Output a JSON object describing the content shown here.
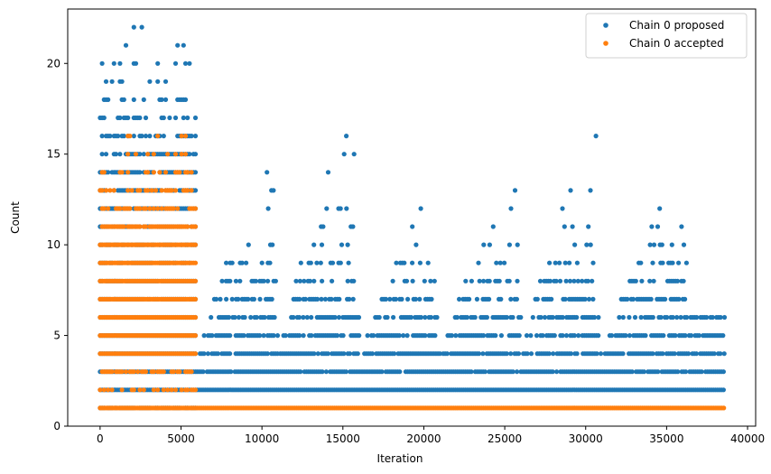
{
  "chart_data": {
    "type": "scatter",
    "xlabel": "Iteration",
    "ylabel": "Count",
    "xlim": [
      -2000,
      40500
    ],
    "ylim": [
      0,
      23
    ],
    "xticks": [
      0,
      5000,
      10000,
      15000,
      20000,
      25000,
      30000,
      35000,
      40000
    ],
    "yticks": [
      0,
      5,
      10,
      15,
      20
    ],
    "grid": false,
    "legend_position": "top-right",
    "colors": {
      "proposed": "#1f77b4",
      "accepted": "#ff7f0e"
    },
    "series": [
      {
        "name": "Chain 0 proposed",
        "color": "#1f77b4",
        "bands": [
          {
            "y": 1,
            "x_from": 0,
            "x_to": 6000,
            "density": 0.8
          },
          {
            "y": 2,
            "x_from": 0,
            "x_to": 38600,
            "density": 1.0
          },
          {
            "y": 3,
            "x_from": 0,
            "x_to": 38600,
            "density": 0.95
          },
          {
            "y": 4,
            "x_from": 0,
            "x_to": 38600,
            "density": 0.85
          },
          {
            "y": 5,
            "x_from": 0,
            "x_to": 38600,
            "density": 0.75
          },
          {
            "y": 6,
            "x_from": 0,
            "x_to": 38600,
            "density": 0.6
          },
          {
            "y": 7,
            "x_from": 0,
            "x_to": 38600,
            "density": 0.55
          },
          {
            "y": 8,
            "x_from": 0,
            "x_to": 38600,
            "density": 0.45
          },
          {
            "y": 9,
            "x_from": 0,
            "x_to": 38600,
            "density": 0.35
          },
          {
            "y": 10,
            "x_from": 0,
            "x_to": 38600,
            "density": 0.3
          },
          {
            "y": 11,
            "x_from": 0,
            "x_to": 38600,
            "density": 0.25
          },
          {
            "y": 12,
            "x_from": 0,
            "x_to": 6000,
            "density": 0.95
          },
          {
            "y": 13,
            "x_from": 0,
            "x_to": 6000,
            "density": 0.9
          },
          {
            "y": 14,
            "x_from": 0,
            "x_to": 6000,
            "density": 0.85
          },
          {
            "y": 15,
            "x_from": 0,
            "x_to": 6000,
            "density": 0.75
          },
          {
            "y": 16,
            "x_from": 0,
            "x_to": 6000,
            "density": 0.55
          },
          {
            "y": 17,
            "x_from": 0,
            "x_to": 6000,
            "density": 0.35
          },
          {
            "y": 18,
            "x_from": 0,
            "x_to": 6000,
            "density": 0.25
          },
          {
            "y": 19,
            "x_from": 0,
            "x_to": 6000,
            "density": 0.15
          },
          {
            "y": 20,
            "x_from": 0,
            "x_to": 6000,
            "density": 0.12
          },
          {
            "y": 21,
            "x_from": 0,
            "x_to": 6000,
            "density": 0.08
          },
          {
            "y": 22,
            "x_from": 0,
            "x_to": 6000,
            "density": 0.05
          }
        ],
        "cycles": [
          {
            "start": 6000,
            "peak_x": 10800,
            "end": 11000,
            "max_y": 15
          },
          {
            "start": 11000,
            "peak_x": 15600,
            "end": 16000,
            "max_y": 17
          },
          {
            "start": 16000,
            "peak_x": 20600,
            "end": 21000,
            "max_y": 13
          },
          {
            "start": 21000,
            "peak_x": 25800,
            "end": 26000,
            "max_y": 14
          },
          {
            "start": 26000,
            "peak_x": 30500,
            "end": 31000,
            "max_y": 16
          },
          {
            "start": 31000,
            "peak_x": 35300,
            "end": 38600,
            "max_y": 13
          }
        ]
      },
      {
        "name": "Chain 0 accepted",
        "color": "#ff7f0e",
        "bands": [
          {
            "y": 1,
            "x_from": 0,
            "x_to": 38600,
            "density": 1.0
          },
          {
            "y": 2,
            "x_from": 0,
            "x_to": 6000,
            "density": 0.45
          },
          {
            "y": 3,
            "x_from": 0,
            "x_to": 6000,
            "density": 0.6
          },
          {
            "y": 4,
            "x_from": 0,
            "x_to": 6000,
            "density": 0.95
          },
          {
            "y": 5,
            "x_from": 0,
            "x_to": 6000,
            "density": 1.0
          },
          {
            "y": 6,
            "x_from": 0,
            "x_to": 6000,
            "density": 1.0
          },
          {
            "y": 7,
            "x_from": 0,
            "x_to": 6000,
            "density": 1.0
          },
          {
            "y": 8,
            "x_from": 0,
            "x_to": 6000,
            "density": 1.0
          },
          {
            "y": 9,
            "x_from": 0,
            "x_to": 6000,
            "density": 1.0
          },
          {
            "y": 10,
            "x_from": 0,
            "x_to": 6000,
            "density": 1.0
          },
          {
            "y": 11,
            "x_from": 0,
            "x_to": 6000,
            "density": 0.9
          },
          {
            "y": 12,
            "x_from": 0,
            "x_to": 6000,
            "density": 0.7
          },
          {
            "y": 13,
            "x_from": 0,
            "x_to": 6000,
            "density": 0.5
          },
          {
            "y": 14,
            "x_from": 0,
            "x_to": 6000,
            "density": 0.3
          },
          {
            "y": 15,
            "x_from": 0,
            "x_to": 6000,
            "density": 0.15
          },
          {
            "y": 16,
            "x_from": 0,
            "x_to": 6000,
            "density": 0.08
          },
          {
            "y": 17,
            "x_from": 0,
            "x_to": 6000,
            "density": 0.03
          },
          {
            "y": 18,
            "x_from": 0,
            "x_to": 6000,
            "density": 0.01
          }
        ]
      }
    ]
  },
  "legend": {
    "items": [
      {
        "label": "Chain 0 proposed",
        "color": "#1f77b4"
      },
      {
        "label": "Chain 0 accepted",
        "color": "#ff7f0e"
      }
    ]
  },
  "axes": {
    "x_title": "Iteration",
    "y_title": "Count",
    "x_tick_labels": [
      "0",
      "5000",
      "10000",
      "15000",
      "20000",
      "25000",
      "30000",
      "35000",
      "40000"
    ],
    "y_tick_labels": [
      "0",
      "5",
      "10",
      "15",
      "20"
    ]
  }
}
